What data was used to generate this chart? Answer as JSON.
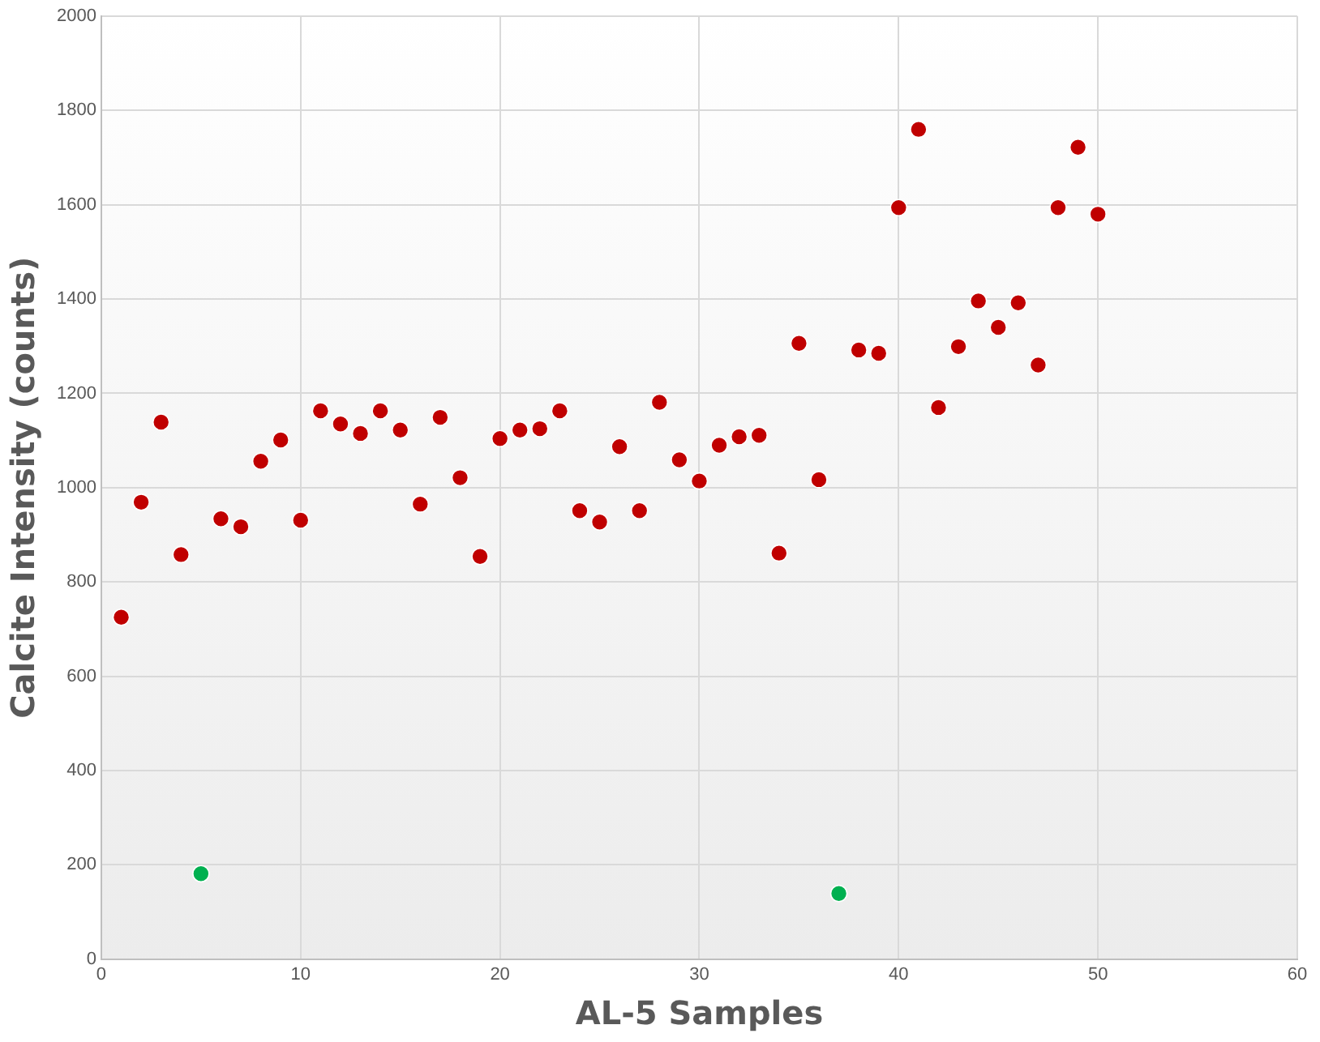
{
  "chart_data": {
    "type": "scatter",
    "xlabel": "AL-5 Samples",
    "ylabel": "Calcite Intensity (counts)",
    "xlim": [
      0,
      60
    ],
    "xticks": [
      0,
      10,
      20,
      30,
      40,
      50,
      60
    ],
    "ylim": [
      0,
      2000
    ],
    "yticks": [
      0,
      200,
      400,
      600,
      800,
      1000,
      1200,
      1400,
      1600,
      1800,
      2000
    ],
    "grid": true,
    "marker": "circle",
    "legend": false,
    "series": [
      {
        "color": "#c00000",
        "x": [
          1,
          2,
          3,
          4,
          6,
          7,
          8,
          9,
          10,
          11,
          12,
          13,
          14,
          15,
          16,
          17,
          18,
          19,
          20,
          21,
          22,
          23,
          24,
          25,
          26,
          27,
          28,
          29,
          30,
          31,
          32,
          33,
          34,
          35,
          36,
          38,
          39,
          40,
          41,
          42,
          43,
          44,
          45,
          46,
          47,
          48,
          49,
          50
        ],
        "values": [
          725,
          969,
          1139,
          858,
          934,
          917,
          1056,
          1101,
          931,
          1163,
          1135,
          1115,
          1163,
          1122,
          965,
          1149,
          1021,
          854,
          1104,
          1122,
          1125,
          1163,
          951,
          927,
          1087,
          951,
          1181,
          1059,
          1014,
          1090,
          1108,
          1111,
          861,
          1306,
          1017,
          1292,
          1285,
          1594,
          1760,
          1170,
          1299,
          1396,
          1340,
          1392,
          1260,
          1594,
          1722,
          1580
        ]
      },
      {
        "color": "#00b050",
        "x": [
          5,
          37
        ],
        "values": [
          181,
          139
        ]
      }
    ]
  }
}
